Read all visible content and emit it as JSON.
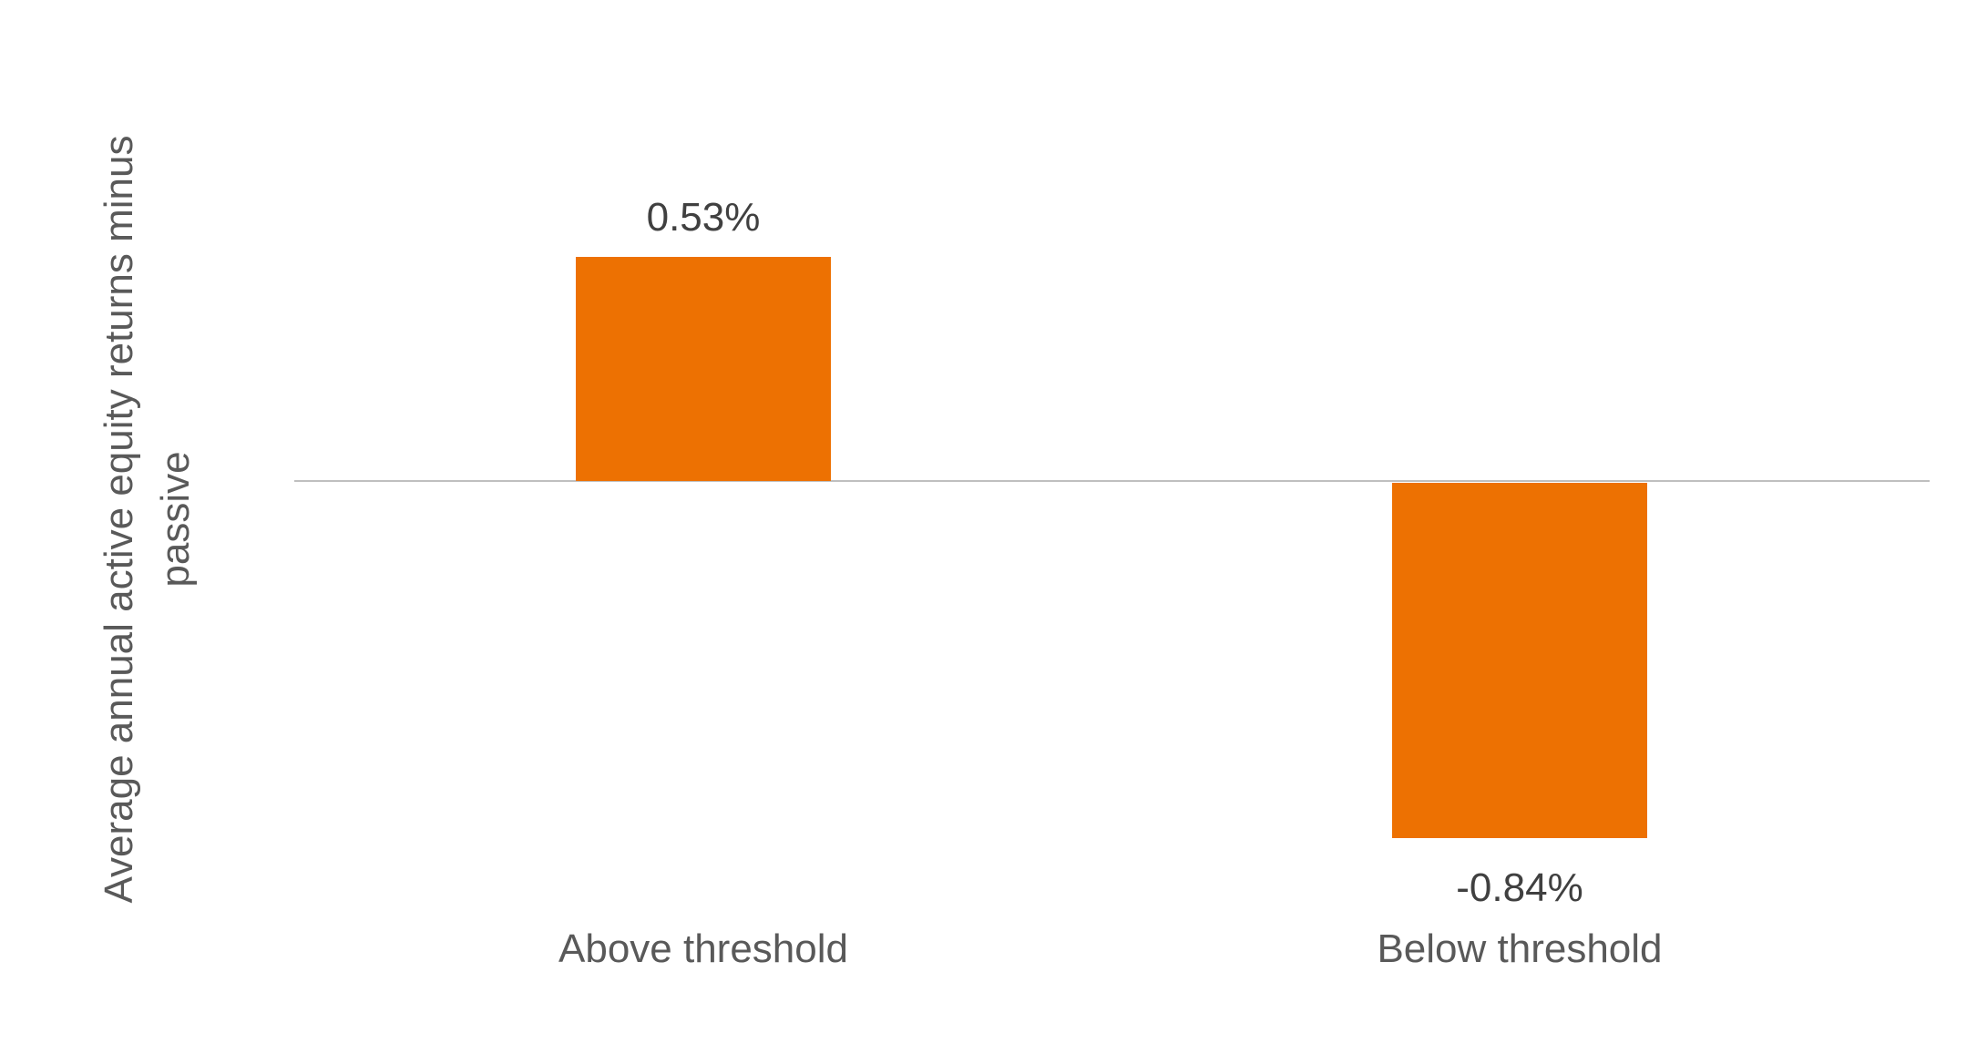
{
  "chart_data": {
    "type": "bar",
    "categories": [
      "Above threshold",
      "Below threshold"
    ],
    "values": [
      0.53,
      -0.84
    ],
    "value_labels": [
      "0.53%",
      "-0.84%"
    ],
    "title": "",
    "xlabel": "",
    "ylabel": "Average annual active equity returns minus passive",
    "bar_color": "#ED7102",
    "baseline_color": "#BFBFBF",
    "value_label_color": "#404040",
    "axis_text_color": "#595959",
    "grid": false,
    "legend_position": "none",
    "axis_tick_labels_visible": false
  }
}
